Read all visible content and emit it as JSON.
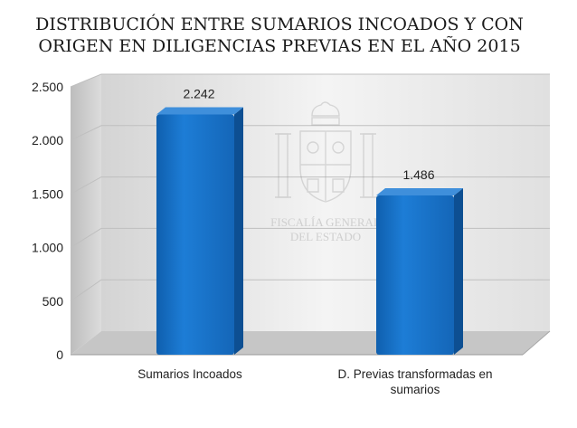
{
  "chart_data": {
    "type": "bar",
    "title_lines": [
      "DISTRIBUCIÓN ENTRE SUMARIOS INCOADOS Y CON",
      "ORIGEN EN DILIGENCIAS PREVIAS EN EL AÑO 2015"
    ],
    "categories": [
      [
        "Sumarios Incoados"
      ],
      [
        "D. Previas transformadas en",
        "sumarios"
      ]
    ],
    "values": [
      2242,
      1486
    ],
    "value_labels": [
      "2.242",
      "1.486"
    ],
    "y_ticks": [
      {
        "value": 0,
        "label": "0"
      },
      {
        "value": 500,
        "label": "500"
      },
      {
        "value": 1000,
        "label": "1.000"
      },
      {
        "value": 1500,
        "label": "1.500"
      },
      {
        "value": 2000,
        "label": "2.000"
      },
      {
        "value": 2500,
        "label": "2.500"
      }
    ],
    "ylim": [
      0,
      2500
    ],
    "grid": true,
    "three_d": true,
    "colors": {
      "bar": "#1670c4",
      "bar_dark": "#0d4f92",
      "bar_top": "#3f8fdb",
      "wall": "#e2e2e2",
      "floor": "#c9c9c9"
    }
  },
  "watermark": {
    "emblem": "coat-of-arms-of-spain",
    "text_lines": [
      "FISCALÍA GENERAL",
      "DEL ESTADO"
    ]
  }
}
